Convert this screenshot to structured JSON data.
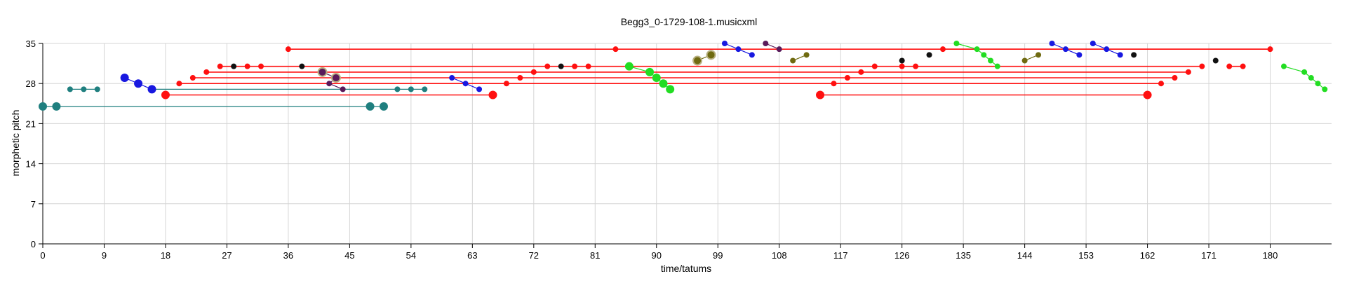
{
  "chart_data": {
    "type": "scatter",
    "title": "Begg3_0-1729-108-1.musicxml",
    "xlabel": "time/tatums",
    "ylabel": "morphetic pitch",
    "xlim": [
      0,
      189
    ],
    "ylim": [
      0,
      35
    ],
    "grid": true,
    "x_ticks": [
      0,
      9,
      18,
      27,
      36,
      45,
      54,
      63,
      72,
      81,
      90,
      99,
      108,
      117,
      126,
      135,
      144,
      153,
      162,
      171,
      180
    ],
    "y_ticks": [
      0,
      7,
      14,
      21,
      28,
      35
    ],
    "colors": {
      "teal": "#1f7f7f",
      "red": "#ff1010",
      "blue": "#1818e0",
      "black": "#111111",
      "purple": "#5a1a5a",
      "olive": "#6f6a10",
      "green": "#22dd22"
    },
    "connections": [
      {
        "color": "teal",
        "points": [
          [
            0,
            24
          ],
          [
            2,
            24
          ],
          [
            48,
            24
          ],
          [
            50,
            24
          ]
        ]
      },
      {
        "color": "teal",
        "points": [
          [
            4,
            27
          ],
          [
            6,
            27
          ],
          [
            8,
            27
          ]
        ]
      },
      {
        "color": "teal",
        "points": [
          [
            16,
            27
          ],
          [
            52,
            27
          ],
          [
            54,
            27
          ],
          [
            56,
            27
          ]
        ]
      },
      {
        "color": "blue",
        "points": [
          [
            12,
            29
          ],
          [
            14,
            28
          ],
          [
            16,
            27
          ]
        ]
      },
      {
        "color": "red",
        "points": [
          [
            18,
            26
          ],
          [
            66,
            26
          ]
        ]
      },
      {
        "color": "red",
        "points": [
          [
            114,
            26
          ],
          [
            162,
            26
          ]
        ]
      },
      {
        "color": "red",
        "points": [
          [
            20,
            28
          ],
          [
            164,
            28
          ]
        ]
      },
      {
        "color": "red",
        "points": [
          [
            22,
            29
          ],
          [
            166,
            29
          ]
        ]
      },
      {
        "color": "red",
        "points": [
          [
            24,
            30
          ],
          [
            168,
            30
          ]
        ]
      },
      {
        "color": "red",
        "points": [
          [
            26,
            31
          ],
          [
            170,
            31
          ]
        ]
      },
      {
        "color": "red",
        "points": [
          [
            36,
            34
          ],
          [
            84,
            34
          ]
        ]
      },
      {
        "color": "red",
        "points": [
          [
            84,
            34
          ],
          [
            180,
            34
          ]
        ]
      },
      {
        "color": "red",
        "points": [
          [
            132,
            34
          ],
          [
            180,
            34
          ]
        ]
      },
      {
        "color": "purple",
        "points": [
          [
            41,
            30
          ],
          [
            43,
            29
          ],
          [
            42,
            28
          ],
          [
            44,
            27
          ]
        ]
      },
      {
        "color": "blue",
        "points": [
          [
            60,
            29
          ],
          [
            62,
            28
          ],
          [
            64,
            27
          ]
        ]
      },
      {
        "color": "green",
        "points": [
          [
            86,
            31
          ],
          [
            89,
            30
          ],
          [
            90,
            29
          ],
          [
            91,
            28
          ],
          [
            92,
            27
          ]
        ]
      },
      {
        "color": "olive",
        "points": [
          [
            96,
            32
          ],
          [
            98,
            33
          ]
        ]
      },
      {
        "color": "blue",
        "points": [
          [
            100,
            35
          ],
          [
            102,
            34
          ],
          [
            104,
            33
          ]
        ]
      },
      {
        "color": "purple",
        "points": [
          [
            106,
            35
          ],
          [
            108,
            34
          ]
        ]
      },
      {
        "color": "olive",
        "points": [
          [
            110,
            32
          ],
          [
            112,
            33
          ]
        ]
      },
      {
        "color": "green",
        "points": [
          [
            134,
            35
          ],
          [
            137,
            34
          ],
          [
            138,
            33
          ],
          [
            139,
            32
          ],
          [
            140,
            31
          ]
        ]
      },
      {
        "color": "olive",
        "points": [
          [
            144,
            32
          ],
          [
            146,
            33
          ]
        ]
      },
      {
        "color": "blue",
        "points": [
          [
            148,
            35
          ],
          [
            150,
            34
          ],
          [
            152,
            33
          ]
        ]
      },
      {
        "color": "blue",
        "points": [
          [
            154,
            35
          ],
          [
            156,
            34
          ],
          [
            158,
            33
          ]
        ]
      },
      {
        "color": "red",
        "points": [
          [
            174,
            31
          ],
          [
            176,
            31
          ]
        ]
      },
      {
        "color": "green",
        "points": [
          [
            182,
            31
          ],
          [
            185,
            30
          ],
          [
            186,
            29
          ],
          [
            187,
            28
          ],
          [
            188,
            27
          ]
        ]
      }
    ],
    "notes": [
      {
        "x": 0,
        "y": 24,
        "color": "teal",
        "size": "large"
      },
      {
        "x": 2,
        "y": 24,
        "color": "teal",
        "size": "large"
      },
      {
        "x": 48,
        "y": 24,
        "color": "teal",
        "size": "large"
      },
      {
        "x": 50,
        "y": 24,
        "color": "teal",
        "size": "large"
      },
      {
        "x": 4,
        "y": 27,
        "color": "teal",
        "size": "small"
      },
      {
        "x": 6,
        "y": 27,
        "color": "teal",
        "size": "small"
      },
      {
        "x": 8,
        "y": 27,
        "color": "teal",
        "size": "small"
      },
      {
        "x": 52,
        "y": 27,
        "color": "teal",
        "size": "small"
      },
      {
        "x": 54,
        "y": 27,
        "color": "teal",
        "size": "small"
      },
      {
        "x": 56,
        "y": 27,
        "color": "teal",
        "size": "small"
      },
      {
        "x": 12,
        "y": 29,
        "color": "blue",
        "size": "large"
      },
      {
        "x": 14,
        "y": 28,
        "color": "blue",
        "size": "large"
      },
      {
        "x": 16,
        "y": 27,
        "color": "blue",
        "size": "large"
      },
      {
        "x": 18,
        "y": 26,
        "color": "red",
        "size": "large"
      },
      {
        "x": 20,
        "y": 28,
        "color": "red",
        "size": "small"
      },
      {
        "x": 22,
        "y": 29,
        "color": "red",
        "size": "small"
      },
      {
        "x": 24,
        "y": 30,
        "color": "red",
        "size": "small"
      },
      {
        "x": 26,
        "y": 31,
        "color": "red",
        "size": "small"
      },
      {
        "x": 28,
        "y": 31,
        "color": "black",
        "size": "small"
      },
      {
        "x": 30,
        "y": 31,
        "color": "red",
        "size": "small"
      },
      {
        "x": 32,
        "y": 31,
        "color": "red",
        "size": "small"
      },
      {
        "x": 36,
        "y": 34,
        "color": "red",
        "size": "small"
      },
      {
        "x": 38,
        "y": 31,
        "color": "black",
        "size": "small"
      },
      {
        "x": 41,
        "y": 30,
        "color": "purple",
        "size": "large",
        "outlined": true
      },
      {
        "x": 43,
        "y": 29,
        "color": "purple",
        "size": "large",
        "outlined": true
      },
      {
        "x": 42,
        "y": 28,
        "color": "purple",
        "size": "small"
      },
      {
        "x": 44,
        "y": 27,
        "color": "purple",
        "size": "small"
      },
      {
        "x": 60,
        "y": 29,
        "color": "blue",
        "size": "small"
      },
      {
        "x": 62,
        "y": 28,
        "color": "blue",
        "size": "small"
      },
      {
        "x": 64,
        "y": 27,
        "color": "blue",
        "size": "small"
      },
      {
        "x": 66,
        "y": 26,
        "color": "red",
        "size": "large"
      },
      {
        "x": 68,
        "y": 28,
        "color": "red",
        "size": "small"
      },
      {
        "x": 70,
        "y": 29,
        "color": "red",
        "size": "small"
      },
      {
        "x": 72,
        "y": 30,
        "color": "red",
        "size": "small"
      },
      {
        "x": 74,
        "y": 31,
        "color": "red",
        "size": "small"
      },
      {
        "x": 76,
        "y": 31,
        "color": "black",
        "size": "small"
      },
      {
        "x": 78,
        "y": 31,
        "color": "red",
        "size": "small"
      },
      {
        "x": 80,
        "y": 31,
        "color": "red",
        "size": "small"
      },
      {
        "x": 84,
        "y": 34,
        "color": "red",
        "size": "small"
      },
      {
        "x": 86,
        "y": 31,
        "color": "green",
        "size": "large"
      },
      {
        "x": 89,
        "y": 30,
        "color": "green",
        "size": "large"
      },
      {
        "x": 90,
        "y": 29,
        "color": "green",
        "size": "large"
      },
      {
        "x": 91,
        "y": 28,
        "color": "green",
        "size": "large"
      },
      {
        "x": 92,
        "y": 27,
        "color": "green",
        "size": "large"
      },
      {
        "x": 96,
        "y": 32,
        "color": "olive",
        "size": "large",
        "outlined": true
      },
      {
        "x": 98,
        "y": 33,
        "color": "olive",
        "size": "large",
        "outlined": true
      },
      {
        "x": 100,
        "y": 35,
        "color": "blue",
        "size": "small"
      },
      {
        "x": 102,
        "y": 34,
        "color": "blue",
        "size": "small"
      },
      {
        "x": 104,
        "y": 33,
        "color": "blue",
        "size": "small"
      },
      {
        "x": 106,
        "y": 35,
        "color": "purple",
        "size": "small"
      },
      {
        "x": 108,
        "y": 34,
        "color": "purple",
        "size": "small"
      },
      {
        "x": 110,
        "y": 32,
        "color": "olive",
        "size": "small"
      },
      {
        "x": 112,
        "y": 33,
        "color": "olive",
        "size": "small"
      },
      {
        "x": 114,
        "y": 26,
        "color": "red",
        "size": "large"
      },
      {
        "x": 116,
        "y": 28,
        "color": "red",
        "size": "small"
      },
      {
        "x": 118,
        "y": 29,
        "color": "red",
        "size": "small"
      },
      {
        "x": 120,
        "y": 30,
        "color": "red",
        "size": "small"
      },
      {
        "x": 122,
        "y": 31,
        "color": "red",
        "size": "small"
      },
      {
        "x": 126,
        "y": 32,
        "color": "black",
        "size": "small"
      },
      {
        "x": 126,
        "y": 31,
        "color": "red",
        "size": "small"
      },
      {
        "x": 128,
        "y": 31,
        "color": "red",
        "size": "small"
      },
      {
        "x": 130,
        "y": 33,
        "color": "black",
        "size": "small"
      },
      {
        "x": 132,
        "y": 34,
        "color": "red",
        "size": "small"
      },
      {
        "x": 134,
        "y": 35,
        "color": "green",
        "size": "small"
      },
      {
        "x": 137,
        "y": 34,
        "color": "green",
        "size": "small"
      },
      {
        "x": 138,
        "y": 33,
        "color": "green",
        "size": "small"
      },
      {
        "x": 139,
        "y": 32,
        "color": "green",
        "size": "small"
      },
      {
        "x": 140,
        "y": 31,
        "color": "green",
        "size": "small"
      },
      {
        "x": 144,
        "y": 32,
        "color": "olive",
        "size": "small"
      },
      {
        "x": 146,
        "y": 33,
        "color": "olive",
        "size": "small"
      },
      {
        "x": 148,
        "y": 35,
        "color": "blue",
        "size": "small"
      },
      {
        "x": 150,
        "y": 34,
        "color": "blue",
        "size": "small"
      },
      {
        "x": 152,
        "y": 33,
        "color": "blue",
        "size": "small"
      },
      {
        "x": 154,
        "y": 35,
        "color": "blue",
        "size": "small"
      },
      {
        "x": 156,
        "y": 34,
        "color": "blue",
        "size": "small"
      },
      {
        "x": 158,
        "y": 33,
        "color": "blue",
        "size": "small"
      },
      {
        "x": 160,
        "y": 33,
        "color": "black",
        "size": "small"
      },
      {
        "x": 162,
        "y": 26,
        "color": "red",
        "size": "large"
      },
      {
        "x": 164,
        "y": 28,
        "color": "red",
        "size": "small"
      },
      {
        "x": 166,
        "y": 29,
        "color": "red",
        "size": "small"
      },
      {
        "x": 168,
        "y": 30,
        "color": "red",
        "size": "small"
      },
      {
        "x": 170,
        "y": 31,
        "color": "red",
        "size": "small"
      },
      {
        "x": 172,
        "y": 32,
        "color": "black",
        "size": "small"
      },
      {
        "x": 174,
        "y": 31,
        "color": "red",
        "size": "small"
      },
      {
        "x": 176,
        "y": 31,
        "color": "red",
        "size": "small"
      },
      {
        "x": 180,
        "y": 34,
        "color": "red",
        "size": "small"
      },
      {
        "x": 182,
        "y": 31,
        "color": "green",
        "size": "small"
      },
      {
        "x": 185,
        "y": 30,
        "color": "green",
        "size": "small"
      },
      {
        "x": 186,
        "y": 29,
        "color": "green",
        "size": "small"
      },
      {
        "x": 187,
        "y": 28,
        "color": "green",
        "size": "small"
      },
      {
        "x": 188,
        "y": 27,
        "color": "green",
        "size": "small"
      }
    ]
  }
}
